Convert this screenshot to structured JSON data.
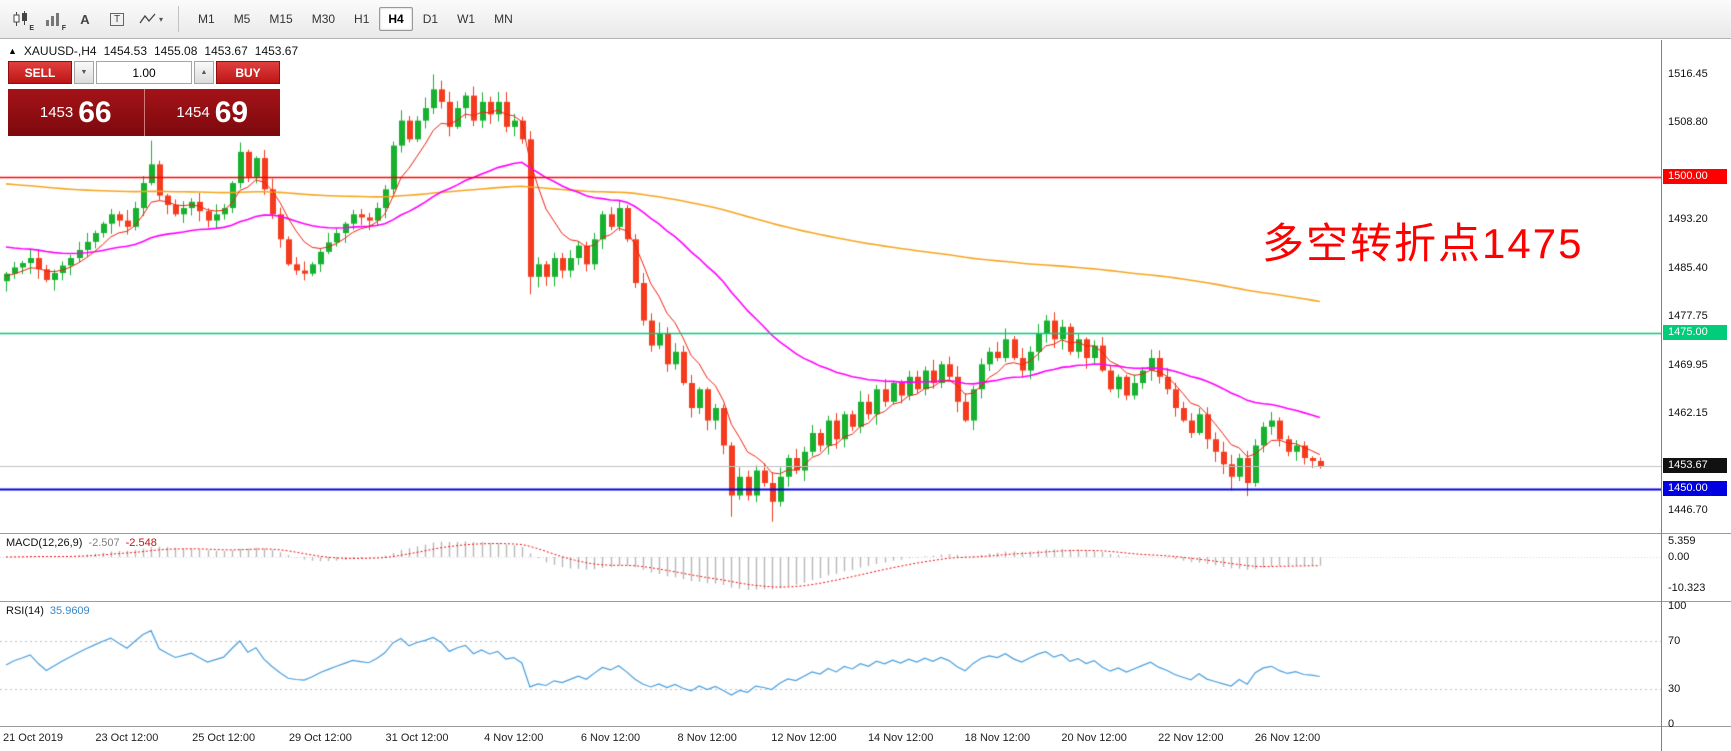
{
  "toolbar": {
    "icons": [
      {
        "name": "candlestick-chart-icon",
        "badge": "E"
      },
      {
        "name": "indicators-panel-icon",
        "badge": "F"
      },
      {
        "name": "text-label-icon",
        "glyph": "A"
      },
      {
        "name": "text-box-icon",
        "glyph": "T"
      },
      {
        "name": "drawing-tools-icon",
        "caret": "▾"
      }
    ],
    "timeframes": [
      "M1",
      "M5",
      "M15",
      "M30",
      "H1",
      "H4",
      "D1",
      "W1",
      "MN"
    ],
    "active_timeframe": "H4"
  },
  "chart": {
    "symbol_line": {
      "expander": "▲",
      "title": "XAUUSD-,H4",
      "open": "1454.53",
      "high": "1455.08",
      "low": "1453.67",
      "close": "1453.67"
    },
    "trade_panel": {
      "sell_label": "SELL",
      "buy_label": "BUY",
      "volume": "1.00",
      "sell_price": {
        "main": "1453",
        "pips": "66"
      },
      "buy_price": {
        "main": "1454",
        "pips": "69"
      },
      "panel_color": "#9a1114",
      "button_color": "#cf1d1d"
    }
  },
  "annotation": {
    "text": "多空转折点1475",
    "color": "#ff0000"
  },
  "chart_data": {
    "type": "candlestick",
    "title": "XAUUSD-,H4",
    "symbol": "XAUUSD-",
    "timeframe": "H4",
    "last_ohlc": {
      "open": 1454.53,
      "high": 1455.08,
      "low": 1453.67,
      "close": 1453.67
    },
    "y_axis": {
      "max": 1521.9,
      "min": 1443.0
    },
    "candle_colors": {
      "up": "#17b02f",
      "down": "#f43b1e"
    },
    "closes": [
      1484.5,
      1485.5,
      1486.2,
      1487,
      1485.2,
      1483.5,
      1484.6,
      1485.8,
      1487,
      1488.3,
      1489.6,
      1491,
      1492.5,
      1494,
      1493,
      1492,
      1495,
      1499,
      1502,
      1497,
      1495.5,
      1494,
      1495,
      1496,
      1494.5,
      1493,
      1494,
      1495,
      1499,
      1504,
      1500,
      1503,
      1498,
      1494,
      1490,
      1486,
      1485,
      1484.5,
      1486,
      1488,
      1489.5,
      1491,
      1492.5,
      1494,
      1493.5,
      1493,
      1495,
      1498,
      1505,
      1509,
      1506,
      1509,
      1511,
      1514,
      1512,
      1508,
      1511,
      1513,
      1509,
      1512,
      1510,
      1512,
      1508,
      1509,
      1506,
      1484,
      1486,
      1484,
      1487,
      1485,
      1487,
      1489,
      1486,
      1490,
      1494,
      1492,
      1495,
      1490,
      1483,
      1477,
      1473,
      1475,
      1470,
      1472,
      1467,
      1463,
      1466,
      1461,
      1463,
      1457,
      1449,
      1452,
      1449,
      1453,
      1451,
      1448,
      1452,
      1455,
      1453,
      1456,
      1459,
      1457,
      1461,
      1458,
      1462,
      1460,
      1464,
      1462,
      1466,
      1464,
      1467,
      1465,
      1468,
      1466,
      1469,
      1467,
      1470,
      1468,
      1464,
      1461,
      1466,
      1470,
      1472,
      1471,
      1474,
      1471,
      1469,
      1472,
      1475,
      1477,
      1474,
      1476,
      1472,
      1474,
      1471,
      1473,
      1469,
      1466,
      1468,
      1465,
      1467,
      1469,
      1471,
      1468,
      1466,
      1463,
      1461,
      1459,
      1462,
      1458,
      1456,
      1454,
      1452,
      1455,
      1451,
      1457,
      1460,
      1461,
      1458,
      1456,
      1457,
      1455,
      1454.53,
      1453.67
    ],
    "wick_overrides": {
      "18": {
        "h": 1505.8
      },
      "29": {
        "h": 1505.5
      },
      "53": {
        "h": 1516.4
      },
      "65": {
        "l": 1481.2
      },
      "90": {
        "l": 1445.6
      },
      "95": {
        "l": 1444.8
      },
      "152": {
        "l": 1449.8
      },
      "154": {
        "l": 1448.9
      },
      "163": {
        "h": 1455.08,
        "l": 1453.3
      }
    },
    "y_ticks": [
      {
        "label": "1516.45",
        "price": 1516.45
      },
      {
        "label": "1508.80",
        "price": 1508.8
      },
      {
        "label": "1493.20",
        "price": 1493.2
      },
      {
        "label": "1485.40",
        "price": 1485.4
      },
      {
        "label": "1477.75",
        "price": 1477.75
      },
      {
        "label": "1469.95",
        "price": 1469.95
      },
      {
        "label": "1462.15",
        "price": 1462.15
      },
      {
        "label": "1446.70",
        "price": 1446.7
      }
    ],
    "badges": [
      {
        "label": "1500.00",
        "price": 1500.0,
        "bg": "#ff0000",
        "fg": "#ffffff"
      },
      {
        "label": "1475.00",
        "price": 1475.0,
        "bg": "#00cc7a",
        "fg": "#ffffff"
      },
      {
        "label": "1453.67",
        "price": 1453.67,
        "bg": "#111111",
        "fg": "#ffffff"
      },
      {
        "label": "1450.00",
        "price": 1450.0,
        "bg": "#0000e0",
        "fg": "#ffffff"
      }
    ],
    "h_lines": [
      {
        "price": 1453.67,
        "color": "#c0c0c0",
        "w": 1
      },
      {
        "price": 1500.0,
        "color": "#ff0000",
        "w": 1.6
      },
      {
        "price": 1475.0,
        "color": "#00cc7a",
        "w": 1.6
      },
      {
        "price": 1450.0,
        "color": "#0000e0",
        "w": 2
      }
    ],
    "x_labels": [
      {
        "label": "21 Oct 2019",
        "i": 1
      },
      {
        "label": "23 Oct 12:00",
        "i": 15
      },
      {
        "label": "25 Oct 12:00",
        "i": 27
      },
      {
        "label": "29 Oct 12:00",
        "i": 39
      },
      {
        "label": "31 Oct 12:00",
        "i": 51
      },
      {
        "label": "4 Nov 12:00",
        "i": 63
      },
      {
        "label": "6 Nov 12:00",
        "i": 75
      },
      {
        "label": "8 Nov 12:00",
        "i": 87
      },
      {
        "label": "12 Nov 12:00",
        "i": 99
      },
      {
        "label": "14 Nov 12:00",
        "i": 111
      },
      {
        "label": "18 Nov 12:00",
        "i": 123
      },
      {
        "label": "20 Nov 12:00",
        "i": 135
      },
      {
        "label": "22 Nov 12:00",
        "i": 147
      },
      {
        "label": "26 Nov 12:00",
        "i": 159
      }
    ],
    "moving_averages": [
      {
        "name": "ma-slow-orange",
        "color": "#f5a623",
        "period": 240,
        "seed": 1499,
        "width": 1.6
      },
      {
        "name": "ma-medium-magenta",
        "color": "#ff00ff",
        "period": 40,
        "seed": 1489,
        "width": 1.6
      },
      {
        "name": "ma-fast-red",
        "color": "#ee2211",
        "period": 7,
        "seed": 1484,
        "width": 1
      }
    ],
    "indicators": {
      "macd": {
        "label": "MACD(12,26,9)",
        "value_main": "-2.507",
        "value_signal": "-2.548",
        "params": [
          12,
          26,
          9
        ],
        "histogram_color": "#b8b8b8",
        "signal_color": "#ee1111",
        "scale_labels": [
          {
            "label": "5.359",
            "value": 5.359
          },
          {
            "label": "0.00",
            "value": 0
          },
          {
            "label": "-10.323",
            "value": -10.323
          }
        ]
      },
      "rsi": {
        "label": "RSI(14)",
        "value": "35.9609",
        "period": 14,
        "line_color": "#4a9edd",
        "levels": [
          70,
          30
        ],
        "scale_labels": [
          {
            "label": "100",
            "value": 100
          },
          {
            "label": "70",
            "value": 70
          },
          {
            "label": "30",
            "value": 30
          },
          {
            "label": "0",
            "value": 0
          }
        ]
      }
    }
  }
}
